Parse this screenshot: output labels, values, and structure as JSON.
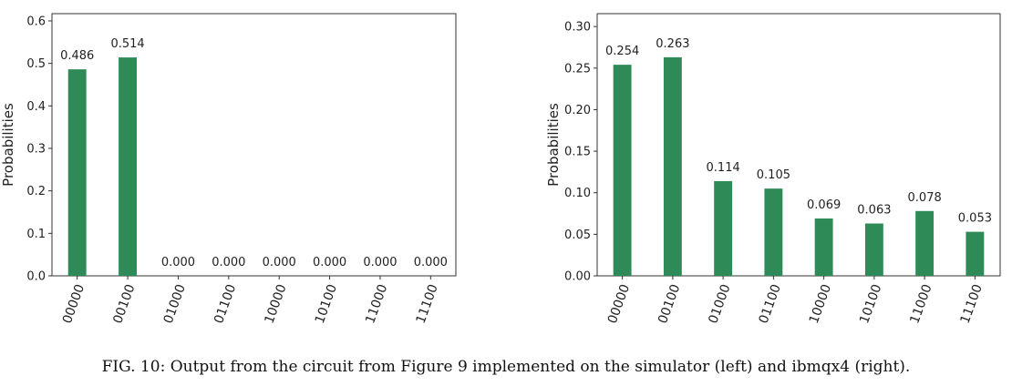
{
  "colors": {
    "bar": "#2e8b57",
    "axis": "#333333",
    "text": "#222222"
  },
  "chart_data": [
    {
      "type": "bar",
      "title": "",
      "xlabel": "",
      "ylabel": "Probabilities",
      "categories": [
        "00000",
        "00100",
        "01000",
        "01100",
        "10000",
        "10100",
        "11000",
        "11100"
      ],
      "values": [
        0.486,
        0.514,
        0.0,
        0.0,
        0.0,
        0.0,
        0.0,
        0.0
      ],
      "data_labels": [
        "0.486",
        "0.514",
        "0.000",
        "0.000",
        "0.000",
        "0.000",
        "0.000",
        "0.000"
      ],
      "ylim": [
        0,
        0.617
      ],
      "yticks": [
        0.0,
        0.1,
        0.2,
        0.3,
        0.4,
        0.5,
        0.6
      ],
      "ytick_labels": [
        "0.0",
        "0.1",
        "0.2",
        "0.3",
        "0.4",
        "0.5",
        "0.6"
      ],
      "grid": false,
      "legend": "none"
    },
    {
      "type": "bar",
      "title": "",
      "xlabel": "",
      "ylabel": "Probabilities",
      "categories": [
        "00000",
        "00100",
        "01000",
        "01100",
        "10000",
        "10100",
        "11000",
        "11100"
      ],
      "values": [
        0.254,
        0.263,
        0.114,
        0.105,
        0.069,
        0.063,
        0.078,
        0.053
      ],
      "data_labels": [
        "0.254",
        "0.263",
        "0.114",
        "0.105",
        "0.069",
        "0.063",
        "0.078",
        "0.053"
      ],
      "ylim": [
        0,
        0.3155
      ],
      "yticks": [
        0.0,
        0.05,
        0.1,
        0.15,
        0.2,
        0.25,
        0.3
      ],
      "ytick_labels": [
        "0.00",
        "0.05",
        "0.10",
        "0.15",
        "0.20",
        "0.25",
        "0.30"
      ],
      "grid": false,
      "legend": "none"
    }
  ],
  "caption": "FIG. 10: Output from the circuit from Figure 9 implemented on the simulator (left) and ibmqx4 (right)."
}
